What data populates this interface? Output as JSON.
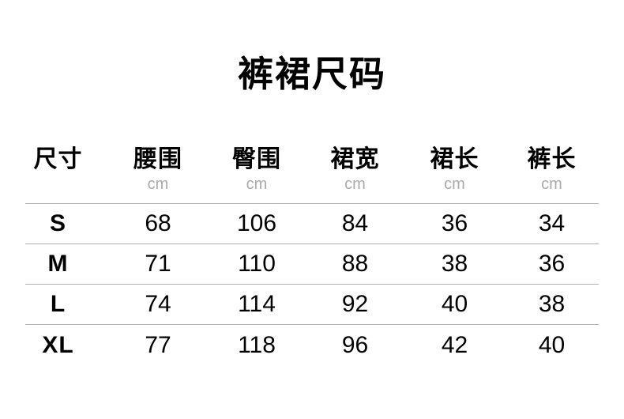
{
  "title": "裤裙尺码",
  "colors": {
    "text": "#000000",
    "unit_gray": "#aaaaaa",
    "divider": "#b0b0b0",
    "background": "#ffffff"
  },
  "table": {
    "columns": [
      {
        "label": "尺寸",
        "unit": ""
      },
      {
        "label": "腰围",
        "unit": "cm"
      },
      {
        "label": "臀围",
        "unit": "cm"
      },
      {
        "label": "裙宽",
        "unit": "cm"
      },
      {
        "label": "裙长",
        "unit": "cm"
      },
      {
        "label": "裤长",
        "unit": "cm"
      }
    ],
    "rows": [
      {
        "size": "S",
        "values": [
          "68",
          "106",
          "84",
          "36",
          "34"
        ]
      },
      {
        "size": "M",
        "values": [
          "71",
          "110",
          "88",
          "38",
          "36"
        ]
      },
      {
        "size": "L",
        "values": [
          "74",
          "114",
          "92",
          "40",
          "38"
        ]
      },
      {
        "size": "XL",
        "values": [
          "77",
          "118",
          "96",
          "42",
          "40"
        ]
      }
    ]
  },
  "chart_data": {
    "type": "table",
    "title": "裤裙尺码",
    "columns": [
      "尺寸",
      "腰围 (cm)",
      "臀围 (cm)",
      "裙宽 (cm)",
      "裙长 (cm)",
      "裤长 (cm)"
    ],
    "rows": [
      [
        "S",
        68,
        106,
        84,
        36,
        34
      ],
      [
        "M",
        71,
        110,
        88,
        38,
        36
      ],
      [
        "L",
        74,
        114,
        92,
        40,
        38
      ],
      [
        "XL",
        77,
        118,
        96,
        42,
        40
      ]
    ]
  }
}
